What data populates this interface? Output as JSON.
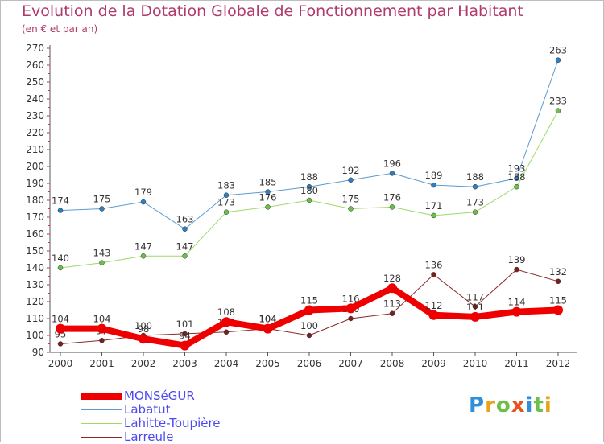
{
  "header": {
    "title": "Evolution de la Dotation Globale de Fonctionnement par Habitant",
    "subtitle": "(en € et par an)"
  },
  "logo": {
    "text": "Proxiti",
    "colors": [
      "#2f8fd8",
      "#e8a21c",
      "#6cc04a",
      "#e8501c",
      "#2f8fd8",
      "#6cc04a",
      "#e8a21c"
    ]
  },
  "chart_data": {
    "type": "line",
    "x": [
      2000,
      2001,
      2002,
      2003,
      2004,
      2005,
      2006,
      2007,
      2008,
      2009,
      2010,
      2011,
      2012
    ],
    "ylim": [
      90,
      270
    ],
    "yticks": [
      90,
      100,
      110,
      120,
      130,
      140,
      150,
      160,
      170,
      180,
      190,
      200,
      210,
      220,
      230,
      240,
      250,
      260,
      270
    ],
    "grid": false,
    "legend_position": "bottom-left",
    "series": [
      {
        "name": "Labatut",
        "color": "#5b9bd0",
        "marker": "#2f7fc0",
        "width": 1,
        "values": [
          174,
          175,
          179,
          163,
          183,
          185,
          188,
          192,
          196,
          189,
          188,
          193,
          263
        ]
      },
      {
        "name": "Lahitte-Toupière",
        "color": "#9ed96a",
        "marker": "#6cc04a",
        "width": 1,
        "values": [
          140,
          143,
          147,
          147,
          173,
          176,
          180,
          175,
          176,
          171,
          173,
          188,
          233
        ]
      },
      {
        "name": "Larreule",
        "color": "#8a2a2a",
        "marker": "#7a1e1e",
        "width": 1,
        "values": [
          95,
          97,
          100,
          101,
          102,
          104,
          100,
          110,
          113,
          136,
          117,
          139,
          132
        ]
      },
      {
        "name": "MONSéGUR",
        "color": "#ee0000",
        "marker": "#ee0000",
        "width": 8,
        "values": [
          104,
          104,
          98,
          94,
          108,
          104,
          115,
          116,
          128,
          112,
          111,
          114,
          115
        ]
      }
    ],
    "legend_order": [
      "MONSéGUR",
      "Labatut",
      "Lahitte-Toupière",
      "Larreule"
    ]
  }
}
